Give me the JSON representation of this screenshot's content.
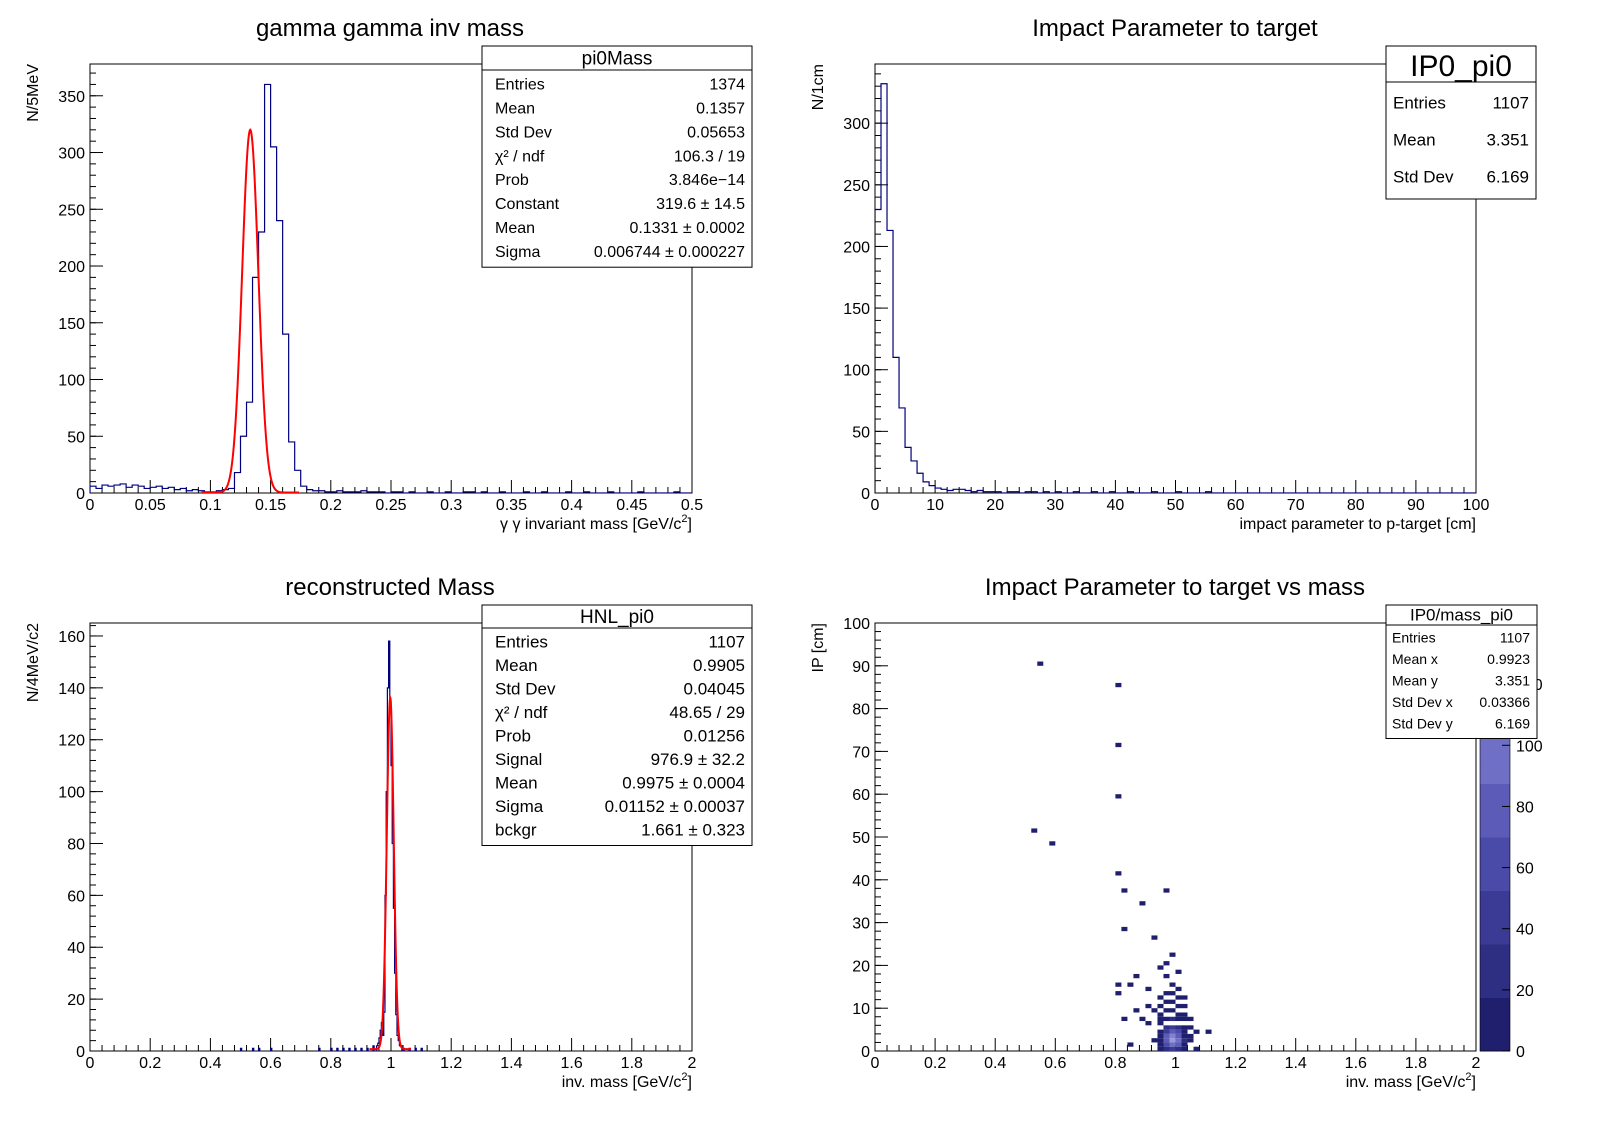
{
  "chart_data": [
    {
      "id": "p1",
      "type": "histogram",
      "title": "gamma gamma inv mass",
      "ylabel": "N/5MeV",
      "xlabel_text": "γ γ invariant mass   [GeV/c",
      "xlabel_sup": "2",
      "xlabel_tail": "]",
      "xlim": [
        0,
        0.5
      ],
      "ylim": [
        0,
        378
      ],
      "xticks": [
        0,
        0.05,
        0.1,
        0.15,
        0.2,
        0.25,
        0.3,
        0.35,
        0.4,
        0.45,
        0.5
      ],
      "xtick_labels": [
        "0",
        "0.05",
        "0.1",
        "0.15",
        "0.2",
        "0.25",
        "0.3",
        "0.35",
        "0.4",
        "0.45",
        "0.5"
      ],
      "yticks": [
        0,
        50,
        100,
        150,
        200,
        250,
        300,
        350
      ],
      "ytick_labels": [
        "0",
        "50",
        "100",
        "150",
        "200",
        "250",
        "300",
        "350"
      ],
      "bin_width": 0.005,
      "values": [
        6,
        4,
        7,
        6,
        7,
        8,
        5,
        7,
        6,
        4,
        5,
        6,
        4,
        5,
        3,
        4,
        2,
        3,
        2,
        1,
        1,
        2,
        3,
        4,
        18,
        50,
        80,
        190,
        230,
        360,
        305,
        240,
        140,
        45,
        20,
        6,
        3,
        2,
        2,
        1,
        1,
        2,
        1,
        1,
        1,
        2,
        1,
        1,
        1,
        0,
        1,
        1,
        0,
        1,
        0,
        0,
        1,
        0,
        0,
        1,
        0,
        0,
        1,
        1,
        0,
        1,
        0,
        0,
        1,
        0,
        0,
        0,
        1,
        0,
        0,
        1,
        0,
        0,
        0,
        1,
        0,
        0,
        1,
        0,
        0,
        0,
        1,
        0,
        0,
        0,
        0,
        1,
        0,
        0,
        0,
        0,
        0,
        1,
        0,
        0
      ],
      "fit": {
        "constant": 319.6,
        "mean": 0.1331,
        "sigma": 0.006744,
        "bg": 0.4
      },
      "stats": {
        "title": "pi0Mass",
        "rows": [
          [
            "Entries",
            "1374"
          ],
          [
            "Mean",
            "0.1357"
          ],
          [
            "Std Dev",
            "0.05653"
          ],
          [
            "χ² / ndf",
            "106.3 / 19"
          ],
          [
            "Prob",
            "3.846e−14"
          ],
          [
            "Constant",
            "319.6 ± 14.5"
          ],
          [
            "Mean",
            "0.1331 ± 0.0002"
          ],
          [
            "Sigma",
            "0.006744 ± 0.000227"
          ]
        ]
      }
    },
    {
      "id": "p2",
      "type": "histogram",
      "title": "Impact Parameter to target",
      "ylabel": "N/1cm",
      "xlabel_text": "impact parameter to p-target   [cm]",
      "xlabel_sup": "",
      "xlabel_tail": "",
      "xlim": [
        0,
        100
      ],
      "ylim": [
        0,
        348
      ],
      "xticks": [
        0,
        10,
        20,
        30,
        40,
        50,
        60,
        70,
        80,
        90,
        100
      ],
      "xtick_labels": [
        "0",
        "10",
        "20",
        "30",
        "40",
        "50",
        "60",
        "70",
        "80",
        "90",
        "100"
      ],
      "yticks": [
        0,
        50,
        100,
        150,
        200,
        250,
        300
      ],
      "ytick_labels": [
        "0",
        "50",
        "100",
        "150",
        "200",
        "250",
        "300"
      ],
      "bin_width": 1,
      "values": [
        230,
        332,
        213,
        110,
        69,
        37,
        26,
        16,
        9,
        6,
        4,
        3,
        2,
        3,
        3,
        2,
        1,
        2,
        1,
        1,
        1,
        0,
        1,
        1,
        0,
        1,
        1,
        0,
        1,
        0,
        1,
        0,
        0,
        1,
        0,
        0,
        1,
        0,
        0,
        1,
        0,
        0,
        1,
        0,
        0,
        0,
        1,
        0,
        0,
        0,
        1,
        0,
        0,
        0,
        0,
        1,
        0,
        0,
        0,
        0,
        0,
        0,
        0,
        0,
        0,
        0,
        0,
        0,
        0,
        0,
        0,
        0,
        0,
        0,
        0,
        0,
        0,
        0,
        0,
        0,
        0,
        0,
        0,
        0,
        0,
        0,
        0,
        0,
        0,
        0,
        0,
        0,
        0,
        0,
        0,
        0,
        0,
        0,
        0,
        0
      ],
      "stats": {
        "title": "IP0_pi0",
        "rows": [
          [
            "Entries",
            "1107"
          ],
          [
            "Mean",
            "3.351"
          ],
          [
            "Std Dev",
            "6.169"
          ]
        ]
      }
    },
    {
      "id": "p3",
      "type": "histogram",
      "title": "reconstructed Mass",
      "ylabel": "N/4MeV/c2",
      "xlabel_text": "inv. mass  [GeV/c",
      "xlabel_sup": "2",
      "xlabel_tail": "]",
      "xlim": [
        0,
        2
      ],
      "ylim": [
        0,
        165
      ],
      "xticks": [
        0,
        0.2,
        0.4,
        0.6,
        0.8,
        1,
        1.2,
        1.4,
        1.6,
        1.8,
        2
      ],
      "xtick_labels": [
        "0",
        "0.2",
        "0.4",
        "0.6",
        "0.8",
        "1",
        "1.2",
        "1.4",
        "1.6",
        "1.8",
        "2"
      ],
      "yticks": [
        0,
        20,
        40,
        60,
        80,
        100,
        120,
        140,
        160
      ],
      "ytick_labels": [
        "0",
        "20",
        "40",
        "60",
        "80",
        "100",
        "120",
        "140",
        "160"
      ],
      "bin_width": 0.004,
      "peak_bins": [
        [
          0.5,
          1
        ],
        [
          0.54,
          1
        ],
        [
          0.56,
          1
        ],
        [
          0.6,
          1
        ],
        [
          0.76,
          1
        ],
        [
          0.8,
          1
        ],
        [
          0.82,
          1
        ],
        [
          0.84,
          1
        ],
        [
          0.86,
          1
        ],
        [
          0.88,
          1
        ],
        [
          0.9,
          1
        ],
        [
          0.92,
          1
        ],
        [
          0.94,
          2
        ],
        [
          0.952,
          2
        ],
        [
          0.956,
          3
        ],
        [
          0.96,
          5
        ],
        [
          0.964,
          8
        ],
        [
          0.968,
          11
        ],
        [
          0.972,
          6
        ],
        [
          0.976,
          15
        ],
        [
          0.98,
          60
        ],
        [
          0.984,
          100
        ],
        [
          0.988,
          140
        ],
        [
          0.992,
          158
        ],
        [
          0.996,
          135
        ],
        [
          1.0,
          110
        ],
        [
          1.004,
          80
        ],
        [
          1.008,
          55
        ],
        [
          1.012,
          30
        ],
        [
          1.016,
          14
        ],
        [
          1.02,
          6
        ],
        [
          1.024,
          4
        ],
        [
          1.028,
          2
        ],
        [
          1.032,
          2
        ],
        [
          1.04,
          1
        ],
        [
          1.06,
          1
        ],
        [
          1.08,
          1
        ],
        [
          1.1,
          1
        ]
      ],
      "fit": {
        "constant": 135.5,
        "mean": 0.9975,
        "sigma": 0.01152,
        "bg": 0.7
      },
      "stats": {
        "title": "HNL_pi0",
        "rows": [
          [
            "Entries",
            "1107"
          ],
          [
            "Mean",
            "0.9905"
          ],
          [
            "Std Dev",
            "0.04045"
          ],
          [
            "χ² / ndf",
            "48.65 / 29"
          ],
          [
            "Prob",
            "0.01256"
          ],
          [
            "Signal",
            "976.9 ± 32.2"
          ],
          [
            "Mean",
            "0.9975 ± 0.0004"
          ],
          [
            "Sigma",
            "0.01152 ± 0.00037"
          ],
          [
            "bckgr",
            "1.661 ± 0.323"
          ]
        ]
      }
    },
    {
      "id": "p4",
      "type": "heatmap",
      "title": "Impact Parameter to target vs mass",
      "ylabel": "IP [cm]",
      "xlabel_text": "inv. mass  [GeV/c",
      "xlabel_sup": "2",
      "xlabel_tail": "]",
      "xlim": [
        0,
        2
      ],
      "ylim": [
        0,
        100
      ],
      "xticks": [
        0,
        0.2,
        0.4,
        0.6,
        0.8,
        1,
        1.2,
        1.4,
        1.6,
        1.8,
        2
      ],
      "xtick_labels": [
        "0",
        "0.2",
        "0.4",
        "0.6",
        "0.8",
        "1",
        "1.2",
        "1.4",
        "1.6",
        "1.8",
        "2"
      ],
      "yticks": [
        0,
        10,
        20,
        30,
        40,
        50,
        60,
        70,
        80,
        90,
        100
      ],
      "ytick_labels": [
        "0",
        "10",
        "20",
        "30",
        "40",
        "50",
        "60",
        "70",
        "80",
        "90",
        "100"
      ],
      "cell_x": 0.02,
      "cell_y": 1,
      "zlim": [
        0,
        140
      ],
      "zticks": [
        0,
        20,
        40,
        60,
        80,
        100,
        120
      ],
      "ztick_labels": [
        "0",
        "20",
        "40",
        "60",
        "80",
        "100",
        "120"
      ],
      "cells": [
        [
          0.54,
          90,
          1
        ],
        [
          0.8,
          85,
          1
        ],
        [
          0.8,
          71,
          1
        ],
        [
          0.8,
          59,
          1
        ],
        [
          0.52,
          51,
          1
        ],
        [
          0.58,
          48,
          1
        ],
        [
          0.8,
          41,
          1
        ],
        [
          0.82,
          37,
          1
        ],
        [
          0.96,
          37,
          1
        ],
        [
          0.88,
          34,
          1
        ],
        [
          0.82,
          28,
          1
        ],
        [
          0.92,
          26,
          1
        ],
        [
          0.98,
          22,
          1
        ],
        [
          0.96,
          20,
          1
        ],
        [
          0.94,
          19,
          1
        ],
        [
          1.0,
          18,
          1
        ],
        [
          0.86,
          17,
          1
        ],
        [
          0.96,
          17,
          1
        ],
        [
          0.8,
          15,
          1
        ],
        [
          0.84,
          15,
          1
        ],
        [
          0.9,
          14,
          1
        ],
        [
          0.8,
          13,
          1
        ],
        [
          0.98,
          15,
          2
        ],
        [
          1.0,
          14,
          2
        ],
        [
          0.94,
          12,
          2
        ],
        [
          0.96,
          13,
          3
        ],
        [
          0.98,
          13,
          4
        ],
        [
          1.0,
          12,
          3
        ],
        [
          1.02,
          12,
          1
        ],
        [
          0.9,
          10,
          1
        ],
        [
          0.94,
          10,
          3
        ],
        [
          0.96,
          11,
          5
        ],
        [
          0.98,
          11,
          6
        ],
        [
          1.0,
          10,
          5
        ],
        [
          1.02,
          10,
          2
        ],
        [
          0.86,
          9,
          1
        ],
        [
          0.92,
          9,
          1
        ],
        [
          0.94,
          8,
          4
        ],
        [
          0.96,
          9,
          8
        ],
        [
          0.98,
          9,
          10
        ],
        [
          1.0,
          8,
          8
        ],
        [
          1.02,
          8,
          3
        ],
        [
          0.82,
          7,
          1
        ],
        [
          0.88,
          7,
          1
        ],
        [
          0.94,
          7,
          5
        ],
        [
          0.96,
          7,
          14
        ],
        [
          0.98,
          7,
          18
        ],
        [
          1.0,
          7,
          14
        ],
        [
          1.02,
          7,
          4
        ],
        [
          1.04,
          7,
          2
        ],
        [
          0.9,
          6,
          1
        ],
        [
          0.94,
          6,
          8
        ],
        [
          0.96,
          5,
          25
        ],
        [
          0.98,
          5,
          40
        ],
        [
          1.0,
          5,
          30
        ],
        [
          1.02,
          5,
          8
        ],
        [
          1.04,
          5,
          1
        ],
        [
          0.94,
          4,
          10
        ],
        [
          0.96,
          4,
          45
        ],
        [
          0.98,
          4,
          70
        ],
        [
          1.0,
          4,
          55
        ],
        [
          1.02,
          4,
          10
        ],
        [
          1.06,
          4,
          1
        ],
        [
          1.1,
          4,
          1
        ],
        [
          0.94,
          3,
          12
        ],
        [
          0.96,
          3,
          70
        ],
        [
          0.98,
          3,
          110
        ],
        [
          1.0,
          3,
          85
        ],
        [
          1.02,
          3,
          15
        ],
        [
          1.04,
          3,
          2
        ],
        [
          0.92,
          2,
          3
        ],
        [
          0.94,
          2,
          15
        ],
        [
          0.96,
          2,
          85
        ],
        [
          0.98,
          2,
          140
        ],
        [
          1.0,
          2,
          100
        ],
        [
          1.02,
          2,
          20
        ],
        [
          1.04,
          2,
          3
        ],
        [
          0.94,
          1,
          10
        ],
        [
          0.96,
          1,
          60
        ],
        [
          0.98,
          1,
          100
        ],
        [
          1.0,
          1,
          75
        ],
        [
          1.02,
          1,
          12
        ],
        [
          0.84,
          1,
          1
        ],
        [
          0.94,
          0,
          4
        ],
        [
          0.96,
          0,
          20
        ],
        [
          0.98,
          0,
          35
        ],
        [
          1.0,
          0,
          25
        ],
        [
          1.02,
          0,
          6
        ],
        [
          1.06,
          0,
          1
        ]
      ],
      "palette": [
        "#1f1f6e",
        "#2e2e82",
        "#3b3b96",
        "#4a4aa8",
        "#5c5cb8",
        "#6f6fc6",
        "#8282d2",
        "#9898dc"
      ],
      "stats": {
        "title": "IP0/mass_pi0",
        "rows": [
          [
            "Entries",
            "1107"
          ],
          [
            "Mean x",
            "0.9923"
          ],
          [
            "Mean y",
            "3.351"
          ],
          [
            "Std Dev x",
            "0.03366"
          ],
          [
            "Std Dev y",
            "6.169"
          ]
        ]
      }
    }
  ],
  "colors": {
    "hist": "#00007f",
    "fit": "#ff0000"
  }
}
